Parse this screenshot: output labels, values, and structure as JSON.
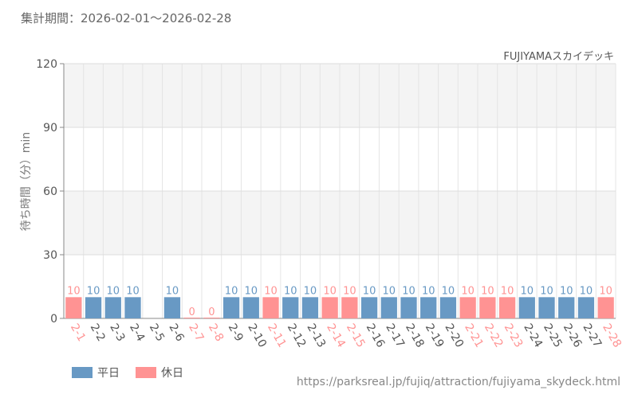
{
  "header": {
    "period": "集計期間：2026-02-01～2026-02-28",
    "attraction": "FUJIYAMAスカイデッキ"
  },
  "legend": {
    "weekday_label": "平日",
    "holiday_label": "休日"
  },
  "footer": {
    "url": "https://parksreal.jp/fujiq/attraction/fujiyama_skydeck.html"
  },
  "colors": {
    "weekday": "#6899c4",
    "holiday": "#ff9393",
    "grid": "#e4e4e4",
    "band": "#f4f4f4"
  },
  "chart_data": {
    "type": "bar",
    "ylabel": "待ち時間（分）min",
    "ylim": [
      0,
      120
    ],
    "yticks": [
      0,
      30,
      60,
      90,
      120
    ],
    "grid": true,
    "legend_position": "bottom-left",
    "categories": [
      "2-1",
      "2-2",
      "2-3",
      "2-4",
      "2-5",
      "2-6",
      "2-7",
      "2-8",
      "2-9",
      "2-10",
      "2-11",
      "2-12",
      "2-13",
      "2-14",
      "2-15",
      "2-16",
      "2-17",
      "2-18",
      "2-19",
      "2-20",
      "2-21",
      "2-22",
      "2-23",
      "2-24",
      "2-25",
      "2-26",
      "2-27",
      "2-28"
    ],
    "values": [
      10,
      10,
      10,
      10,
      null,
      10,
      0,
      0,
      10,
      10,
      10,
      10,
      10,
      10,
      10,
      10,
      10,
      10,
      10,
      10,
      10,
      10,
      10,
      10,
      10,
      10,
      10,
      10
    ],
    "day_type": [
      "holiday",
      "weekday",
      "weekday",
      "weekday",
      "weekday",
      "weekday",
      "holiday",
      "holiday",
      "weekday",
      "weekday",
      "holiday",
      "weekday",
      "weekday",
      "holiday",
      "holiday",
      "weekday",
      "weekday",
      "weekday",
      "weekday",
      "weekday",
      "holiday",
      "holiday",
      "holiday",
      "weekday",
      "weekday",
      "weekday",
      "weekday",
      "holiday"
    ]
  }
}
